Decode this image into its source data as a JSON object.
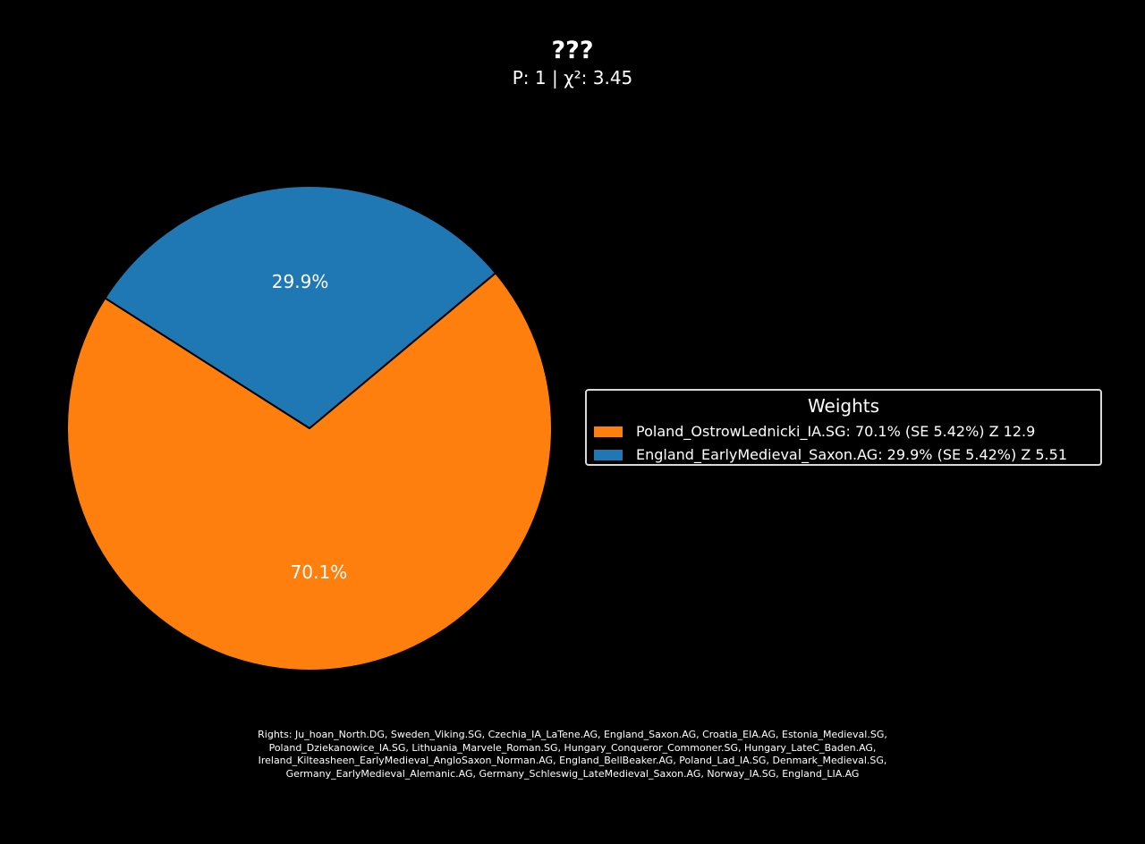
{
  "header": {
    "title": "???",
    "subtitle": "P: 1 | χ²: 3.45"
  },
  "chart_data": {
    "type": "pie",
    "title": "???",
    "subtitle": "P: 1 | χ²: 3.45",
    "slices": [
      {
        "label": "70.1%",
        "value": 70.1,
        "color": "#ff7f0e"
      },
      {
        "label": "29.9%",
        "value": 29.9,
        "color": "#1f77b4"
      }
    ],
    "legend": {
      "title": "Weights",
      "placement": "right",
      "entries": [
        {
          "label": "Poland_OstrowLednicki_IA.SG: 70.1% (SE 5.42%) Z 12.9",
          "color": "#ff7f0e"
        },
        {
          "label": "England_EarlyMedieval_Saxon.AG: 29.9% (SE 5.42%) Z 5.51",
          "color": "#1f77b4"
        }
      ]
    }
  },
  "footer": {
    "lines": [
      "Rights: Ju_hoan_North.DG, Sweden_Viking.SG, Czechia_IA_LaTene.AG, England_Saxon.AG, Croatia_EIA.AG, Estonia_Medieval.SG,",
      "Poland_Dziekanowice_IA.SG, Lithuania_Marvele_Roman.SG, Hungary_Conqueror_Commoner.SG, Hungary_LateC_Baden.AG,",
      "Ireland_Kilteasheen_EarlyMedieval_AngloSaxon_Norman.AG, England_BellBeaker.AG, Poland_Lad_IA.SG, Denmark_Medieval.SG,",
      "Germany_EarlyMedieval_Alemanic.AG, Germany_Schleswig_LateMedieval_Saxon.AG, Norway_IA.SG, England_LIA.AG"
    ]
  }
}
